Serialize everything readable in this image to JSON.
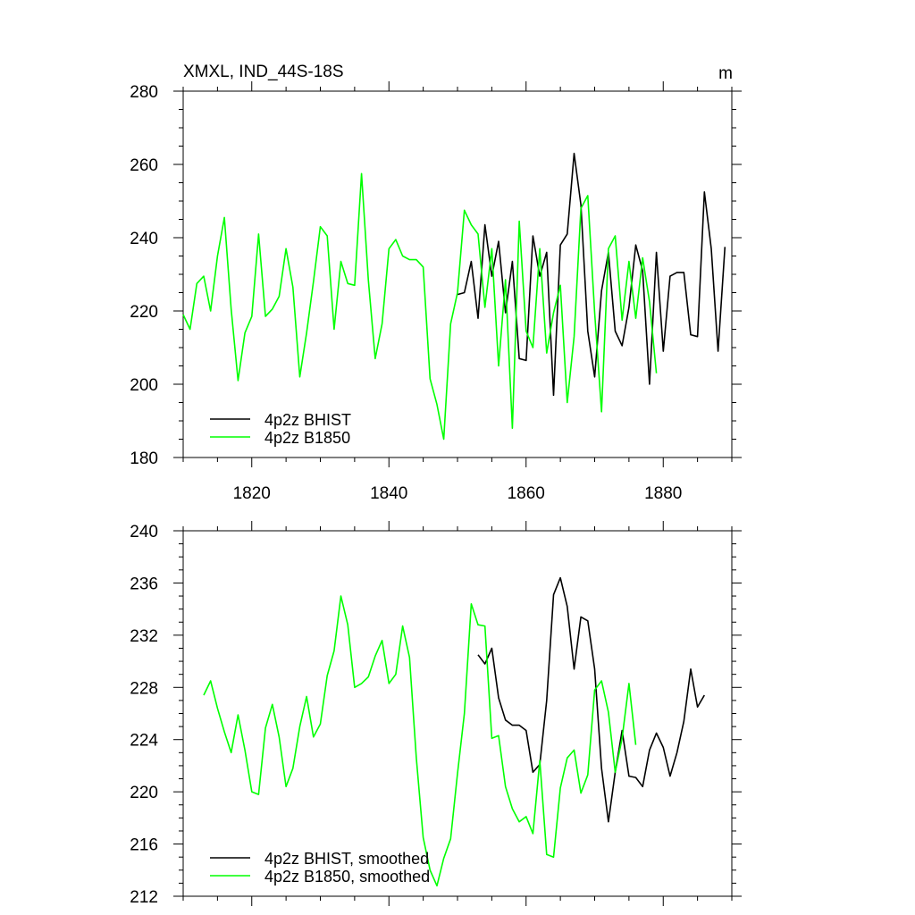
{
  "chart_data": [
    {
      "type": "line",
      "title_left": "XMXL, IND_44S-18S",
      "title_right": "m",
      "xlim": [
        1810,
        1890
      ],
      "ylim": [
        180,
        280
      ],
      "xticks": [
        1820,
        1840,
        1860,
        1880
      ],
      "yticks": [
        180,
        200,
        220,
        240,
        260,
        280
      ],
      "xticks_labeled": true,
      "legend": "bottom-left",
      "series": [
        {
          "name": "4p2z BHIST",
          "color": "#000000",
          "x": [
            1850,
            1851,
            1852,
            1853,
            1854,
            1855,
            1856,
            1857,
            1858,
            1859,
            1860,
            1861,
            1862,
            1863,
            1864,
            1865,
            1866,
            1867,
            1868,
            1869,
            1870,
            1871,
            1872,
            1873,
            1874,
            1875,
            1876,
            1877,
            1878,
            1879,
            1880,
            1881,
            1882,
            1883,
            1884,
            1885,
            1886,
            1887,
            1888,
            1889
          ],
          "y": [
            224.5,
            225,
            233.5,
            218,
            243.5,
            229.5,
            239,
            219.5,
            233.5,
            207,
            206.5,
            240.5,
            229.5,
            236,
            197,
            238,
            241,
            263,
            249,
            214.5,
            202,
            225.5,
            236,
            214.5,
            210.5,
            221,
            238,
            231,
            200,
            236,
            209,
            229.5,
            230.5,
            230.5,
            213.5,
            213,
            252.5,
            237,
            209,
            237.5
          ]
        },
        {
          "name": "4p2z B1850",
          "color": "#00ff00",
          "x": [
            1810,
            1811,
            1812,
            1813,
            1814,
            1815,
            1816,
            1817,
            1818,
            1819,
            1820,
            1821,
            1822,
            1823,
            1824,
            1825,
            1826,
            1827,
            1828,
            1829,
            1830,
            1831,
            1832,
            1833,
            1834,
            1835,
            1836,
            1837,
            1838,
            1839,
            1840,
            1841,
            1842,
            1843,
            1844,
            1845,
            1846,
            1847,
            1848,
            1849,
            1850,
            1851,
            1852,
            1853,
            1854,
            1855,
            1856,
            1857,
            1858,
            1859,
            1860,
            1861,
            1862,
            1863,
            1864,
            1865,
            1866,
            1867,
            1868,
            1869,
            1870,
            1871,
            1872,
            1873,
            1874,
            1875,
            1876,
            1877,
            1878,
            1879
          ],
          "y": [
            219,
            215,
            227.5,
            229.5,
            220,
            235,
            245.5,
            220.5,
            201,
            214,
            218.5,
            241,
            218.5,
            220.5,
            224,
            237,
            226.5,
            202,
            214,
            228,
            243,
            240.5,
            215,
            233.5,
            227.5,
            227,
            257.5,
            228.5,
            207,
            216.5,
            237,
            239.5,
            235,
            234,
            234,
            232,
            201.5,
            194.5,
            185,
            216.5,
            225,
            247.5,
            243.5,
            241,
            221,
            237,
            205,
            228.5,
            188,
            244.5,
            214.5,
            210,
            237,
            208.5,
            219.5,
            227,
            195,
            213,
            248,
            251.5,
            219.5,
            192.5,
            237,
            240.5,
            217.5,
            233.5,
            218,
            234.5,
            222.5,
            203
          ]
        }
      ]
    },
    {
      "type": "line",
      "xlim": [
        1810,
        1890
      ],
      "ylim": [
        212,
        240
      ],
      "xticks": [
        1820,
        1840,
        1860,
        1880
      ],
      "yticks": [
        212,
        216,
        220,
        224,
        228,
        232,
        236,
        240
      ],
      "xticks_labeled": false,
      "legend": "bottom-left",
      "series": [
        {
          "name": "4p2z BHIST, smoothed",
          "color": "#000000",
          "x": [
            1853,
            1854,
            1855,
            1856,
            1857,
            1858,
            1859,
            1860,
            1861,
            1862,
            1863,
            1864,
            1865,
            1866,
            1867,
            1868,
            1869,
            1870,
            1871,
            1872,
            1873,
            1874,
            1875,
            1876,
            1877,
            1878,
            1879,
            1880,
            1881,
            1882,
            1883,
            1884,
            1885,
            1886
          ],
          "y": [
            230.5,
            229.8,
            231,
            227.2,
            225.5,
            225.1,
            225.1,
            224.7,
            221.5,
            222.1,
            227,
            235.1,
            236.4,
            234.2,
            229.4,
            233.4,
            233.1,
            229.4,
            221.8,
            217.7,
            221.5,
            224.7,
            221.2,
            221.1,
            220.4,
            223.2,
            224.5,
            223.4,
            221.2,
            223,
            225.4,
            229.4,
            226.5,
            227.4
          ]
        },
        {
          "name": "4p2z B1850, smoothed",
          "color": "#00ff00",
          "x": [
            1813,
            1814,
            1815,
            1816,
            1817,
            1818,
            1819,
            1820,
            1821,
            1822,
            1823,
            1824,
            1825,
            1826,
            1827,
            1828,
            1829,
            1830,
            1831,
            1832,
            1833,
            1834,
            1835,
            1836,
            1837,
            1838,
            1839,
            1840,
            1841,
            1842,
            1843,
            1844,
            1845,
            1846,
            1847,
            1848,
            1849,
            1850,
            1851,
            1852,
            1853,
            1854,
            1855,
            1856,
            1857,
            1858,
            1859,
            1860,
            1861,
            1862,
            1863,
            1864,
            1865,
            1866,
            1867,
            1868,
            1869,
            1870,
            1871,
            1872,
            1873,
            1874,
            1875,
            1876
          ],
          "y": [
            227.4,
            228.5,
            226.4,
            224.6,
            223,
            225.9,
            223.2,
            220,
            219.8,
            224.9,
            226.7,
            224.2,
            220.4,
            221.8,
            225,
            227.3,
            224.2,
            225.2,
            228.9,
            230.8,
            235,
            232.8,
            228,
            228.3,
            228.8,
            230.4,
            231.6,
            228.3,
            229,
            232.7,
            230.3,
            222.6,
            216.5,
            214,
            212.8,
            214.9,
            216.4,
            221.4,
            226,
            234.4,
            232.8,
            232.7,
            224.1,
            224.3,
            220.4,
            218.7,
            217.7,
            218.1,
            216.8,
            222.4,
            215.2,
            215,
            220.3,
            222.6,
            223.2,
            219.9,
            221.3,
            227.8,
            228.5,
            226.1,
            221.5,
            224.1,
            228.3,
            223.6
          ]
        }
      ]
    }
  ]
}
